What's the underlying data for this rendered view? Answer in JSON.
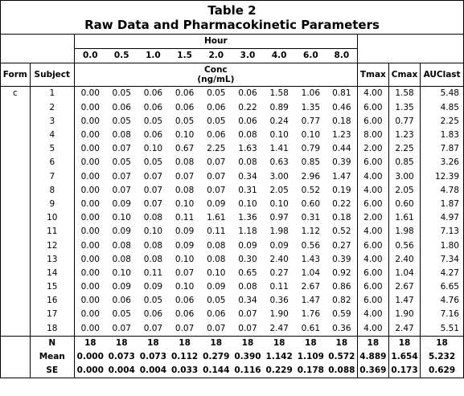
{
  "title_line1": "Table 2",
  "title_line2": "Raw Data and Pharmacokinetic Parameters",
  "hour_label": "Hour",
  "hours": [
    "0.0",
    "0.5",
    "1.0",
    "1.5",
    "2.0",
    "3.0",
    "4.0",
    "6.0",
    "8.0"
  ],
  "form_label": "Form",
  "subject_label": "Subject",
  "conc_label": "Conc",
  "conc_unit": "(ng/mL)",
  "params": [
    "Tmax",
    "Cmax",
    "AUClast"
  ],
  "form_value": "c",
  "rows": [
    {
      "subject": "1",
      "conc": [
        "0.00",
        "0.05",
        "0.06",
        "0.06",
        "0.05",
        "0.06",
        "1.58",
        "1.06",
        "0.81"
      ],
      "tmax": "4.00",
      "cmax": "1.58",
      "auc": "5.48"
    },
    {
      "subject": "2",
      "conc": [
        "0.00",
        "0.06",
        "0.06",
        "0.06",
        "0.06",
        "0.22",
        "0.89",
        "1.35",
        "0.46"
      ],
      "tmax": "6.00",
      "cmax": "1.35",
      "auc": "4.85"
    },
    {
      "subject": "3",
      "conc": [
        "0.00",
        "0.05",
        "0.05",
        "0.05",
        "0.05",
        "0.06",
        "0.24",
        "0.77",
        "0.18"
      ],
      "tmax": "6.00",
      "cmax": "0.77",
      "auc": "2.25"
    },
    {
      "subject": "4",
      "conc": [
        "0.00",
        "0.08",
        "0.06",
        "0.10",
        "0.06",
        "0.08",
        "0.10",
        "0.10",
        "1.23"
      ],
      "tmax": "8.00",
      "cmax": "1.23",
      "auc": "1.83"
    },
    {
      "subject": "5",
      "conc": [
        "0.00",
        "0.07",
        "0.10",
        "0.67",
        "2.25",
        "1.63",
        "1.41",
        "0.79",
        "0.44"
      ],
      "tmax": "2.00",
      "cmax": "2.25",
      "auc": "7.87"
    },
    {
      "subject": "6",
      "conc": [
        "0.00",
        "0.05",
        "0.05",
        "0.08",
        "0.07",
        "0.08",
        "0.63",
        "0.85",
        "0.39"
      ],
      "tmax": "6.00",
      "cmax": "0.85",
      "auc": "3.26"
    },
    {
      "subject": "7",
      "conc": [
        "0.00",
        "0.07",
        "0.07",
        "0.07",
        "0.07",
        "0.34",
        "3.00",
        "2.96",
        "1.47"
      ],
      "tmax": "4.00",
      "cmax": "3.00",
      "auc": "12.39"
    },
    {
      "subject": "8",
      "conc": [
        "0.00",
        "0.07",
        "0.07",
        "0.08",
        "0.07",
        "0.31",
        "2.05",
        "0.52",
        "0.19"
      ],
      "tmax": "4.00",
      "cmax": "2.05",
      "auc": "4.78"
    },
    {
      "subject": "9",
      "conc": [
        "0.00",
        "0.09",
        "0.07",
        "0.10",
        "0.09",
        "0.10",
        "0.10",
        "0.60",
        "0.22"
      ],
      "tmax": "6.00",
      "cmax": "0.60",
      "auc": "1.87"
    },
    {
      "subject": "10",
      "conc": [
        "0.00",
        "0.10",
        "0.08",
        "0.11",
        "1.61",
        "1.36",
        "0.97",
        "0.31",
        "0.18"
      ],
      "tmax": "2.00",
      "cmax": "1.61",
      "auc": "4.97"
    },
    {
      "subject": "11",
      "conc": [
        "0.00",
        "0.09",
        "0.10",
        "0.09",
        "0.11",
        "1.18",
        "1.98",
        "1.12",
        "0.52"
      ],
      "tmax": "4.00",
      "cmax": "1.98",
      "auc": "7.13"
    },
    {
      "subject": "12",
      "conc": [
        "0.00",
        "0.08",
        "0.08",
        "0.09",
        "0.08",
        "0.09",
        "0.09",
        "0.56",
        "0.27"
      ],
      "tmax": "6.00",
      "cmax": "0.56",
      "auc": "1.80"
    },
    {
      "subject": "13",
      "conc": [
        "0.00",
        "0.08",
        "0.08",
        "0.10",
        "0.08",
        "0.30",
        "2.40",
        "1.43",
        "0.39"
      ],
      "tmax": "4.00",
      "cmax": "2.40",
      "auc": "7.34"
    },
    {
      "subject": "14",
      "conc": [
        "0.00",
        "0.10",
        "0.11",
        "0.07",
        "0.10",
        "0.65",
        "0.27",
        "1.04",
        "0.92"
      ],
      "tmax": "6.00",
      "cmax": "1.04",
      "auc": "4.27"
    },
    {
      "subject": "15",
      "conc": [
        "0.00",
        "0.09",
        "0.09",
        "0.10",
        "0.09",
        "0.08",
        "0.11",
        "2.67",
        "0.86"
      ],
      "tmax": "6.00",
      "cmax": "2.67",
      "auc": "6.65"
    },
    {
      "subject": "16",
      "conc": [
        "0.00",
        "0.06",
        "0.05",
        "0.06",
        "0.05",
        "0.34",
        "0.36",
        "1.47",
        "0.82"
      ],
      "tmax": "6.00",
      "cmax": "1.47",
      "auc": "4.76"
    },
    {
      "subject": "17",
      "conc": [
        "0.00",
        "0.05",
        "0.06",
        "0.06",
        "0.06",
        "0.07",
        "1.90",
        "1.76",
        "0.59"
      ],
      "tmax": "4.00",
      "cmax": "1.90",
      "auc": "7.16"
    },
    {
      "subject": "18",
      "conc": [
        "0.00",
        "0.07",
        "0.07",
        "0.07",
        "0.07",
        "0.07",
        "2.47",
        "0.61",
        "0.36"
      ],
      "tmax": "4.00",
      "cmax": "2.47",
      "auc": "5.51"
    }
  ],
  "summary": [
    {
      "label": "N",
      "conc": [
        "18",
        "18",
        "18",
        "18",
        "18",
        "18",
        "18",
        "18",
        "18"
      ],
      "tmax": "18",
      "cmax": "18",
      "auc": "18"
    },
    {
      "label": "Mean",
      "conc": [
        "0.000",
        "0.073",
        "0.073",
        "0.112",
        "0.279",
        "0.390",
        "1.142",
        "1.109",
        "0.572"
      ],
      "tmax": "4.889",
      "cmax": "1.654",
      "auc": "5.232"
    },
    {
      "label": "SE",
      "conc": [
        "0.000",
        "0.004",
        "0.004",
        "0.033",
        "0.144",
        "0.116",
        "0.229",
        "0.178",
        "0.088"
      ],
      "tmax": "0.369",
      "cmax": "0.173",
      "auc": "0.629"
    }
  ]
}
